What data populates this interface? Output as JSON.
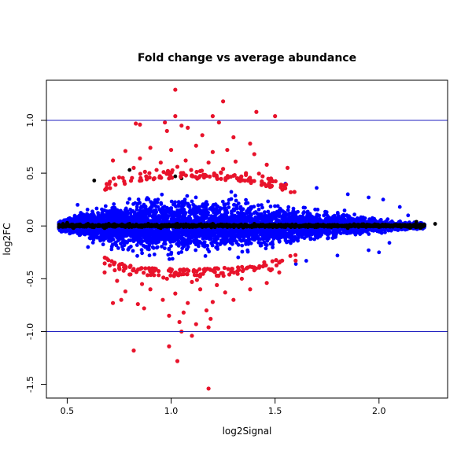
{
  "chart_data": {
    "type": "scatter",
    "title": "Fold change vs average abundance",
    "xlabel": "log2Signal",
    "ylabel": "log2FC",
    "xlim": [
      0.4,
      2.33
    ],
    "ylim": [
      -1.63,
      1.38
    ],
    "x_ticks": [
      {
        "value": 0.5,
        "label": "0.5"
      },
      {
        "value": 1.0,
        "label": "1.0"
      },
      {
        "value": 1.5,
        "label": "1.5"
      },
      {
        "value": 2.0,
        "label": "2.0"
      }
    ],
    "y_ticks": [
      {
        "value": 1.0,
        "label": "1.0"
      },
      {
        "value": 0.5,
        "label": "0.5"
      },
      {
        "value": 0.0,
        "label": "0.0"
      },
      {
        "value": -0.5,
        "label": "-0.5"
      },
      {
        "value": -1.0,
        "label": "-1.0"
      },
      {
        "value": -1.5,
        "label": "-1.5"
      }
    ],
    "reference_lines": [
      1.0,
      -1.0
    ],
    "reference_line_color": "#1f1fbf",
    "grid": false,
    "colors": {
      "black": "#000000",
      "blue": "#0000ff",
      "red": "#e8132b"
    },
    "points_black": [
      [
        0.46,
        -0.01
      ],
      [
        0.48,
        0.02
      ],
      [
        0.5,
        0.03
      ],
      [
        0.53,
        -0.02
      ],
      [
        0.55,
        0.01
      ],
      [
        0.58,
        0.0
      ],
      [
        0.6,
        0.02
      ],
      [
        0.62,
        -0.01
      ],
      [
        0.65,
        0.01
      ],
      [
        0.68,
        -0.02
      ],
      [
        0.7,
        0.02
      ],
      [
        0.73,
        0.0
      ],
      [
        0.76,
        0.01
      ],
      [
        0.78,
        -0.01
      ],
      [
        0.8,
        0.02
      ],
      [
        0.83,
        0.0
      ],
      [
        0.86,
        -0.01
      ],
      [
        0.89,
        0.02
      ],
      [
        0.92,
        0.01
      ],
      [
        0.95,
        -0.02
      ],
      [
        0.98,
        0.01
      ],
      [
        1.0,
        0.0
      ],
      [
        1.03,
        0.02
      ],
      [
        1.06,
        -0.01
      ],
      [
        1.1,
        0.01
      ],
      [
        1.15,
        -0.01
      ],
      [
        1.2,
        0.02
      ],
      [
        1.25,
        0.0
      ],
      [
        1.3,
        0.01
      ],
      [
        1.35,
        -0.01
      ],
      [
        1.4,
        0.02
      ],
      [
        1.45,
        0.0
      ],
      [
        1.5,
        0.01
      ],
      [
        1.55,
        -0.01
      ],
      [
        1.6,
        0.0
      ],
      [
        1.65,
        0.01
      ],
      [
        1.7,
        -0.01
      ],
      [
        1.75,
        0.0
      ],
      [
        1.8,
        0.01
      ],
      [
        1.85,
        -0.02
      ],
      [
        1.9,
        0.0
      ],
      [
        1.95,
        0.01
      ],
      [
        2.0,
        -0.01
      ],
      [
        2.05,
        0.0
      ],
      [
        2.1,
        0.01
      ],
      [
        2.15,
        -0.02
      ],
      [
        2.18,
        0.04
      ],
      [
        2.2,
        -0.02
      ],
      [
        2.27,
        0.02
      ],
      [
        0.63,
        0.43
      ],
      [
        0.8,
        0.53
      ],
      [
        1.02,
        0.47
      ],
      [
        1.05,
        0.45
      ]
    ],
    "points_red": [
      [
        1.02,
        1.29
      ],
      [
        1.25,
        1.18
      ],
      [
        1.41,
        1.08
      ],
      [
        1.5,
        1.04
      ],
      [
        1.2,
        1.04
      ],
      [
        1.02,
        1.04
      ],
      [
        0.83,
        0.97
      ],
      [
        0.85,
        0.96
      ],
      [
        0.97,
        0.98
      ],
      [
        1.05,
        0.95
      ],
      [
        1.08,
        0.93
      ],
      [
        1.23,
        0.98
      ],
      [
        1.15,
        0.86
      ],
      [
        0.98,
        0.9
      ],
      [
        1.3,
        0.84
      ],
      [
        1.38,
        0.78
      ],
      [
        0.78,
        0.71
      ],
      [
        0.9,
        0.74
      ],
      [
        1.0,
        0.72
      ],
      [
        1.12,
        0.76
      ],
      [
        1.2,
        0.7
      ],
      [
        1.27,
        0.72
      ],
      [
        1.4,
        0.68
      ],
      [
        0.72,
        0.62
      ],
      [
        0.85,
        0.64
      ],
      [
        0.95,
        0.6
      ],
      [
        1.07,
        0.62
      ],
      [
        1.18,
        0.6
      ],
      [
        1.31,
        0.61
      ],
      [
        1.46,
        0.58
      ],
      [
        0.82,
        0.55
      ],
      [
        0.93,
        0.53
      ],
      [
        1.03,
        0.56
      ],
      [
        1.14,
        0.52
      ],
      [
        1.25,
        0.54
      ],
      [
        1.36,
        0.5
      ],
      [
        1.56,
        0.55
      ],
      [
        0.75,
        0.46
      ],
      [
        0.88,
        0.47
      ],
      [
        0.99,
        0.45
      ],
      [
        1.1,
        0.48
      ],
      [
        1.22,
        0.46
      ],
      [
        1.33,
        0.45
      ],
      [
        1.44,
        0.47
      ],
      [
        0.68,
        -0.44
      ],
      [
        0.8,
        -0.46
      ],
      [
        0.92,
        -0.42
      ],
      [
        1.04,
        -0.45
      ],
      [
        1.16,
        -0.43
      ],
      [
        1.28,
        -0.46
      ],
      [
        1.4,
        -0.42
      ],
      [
        1.52,
        -0.44
      ],
      [
        0.74,
        -0.52
      ],
      [
        0.86,
        -0.55
      ],
      [
        0.98,
        -0.5
      ],
      [
        1.1,
        -0.53
      ],
      [
        1.22,
        -0.56
      ],
      [
        1.34,
        -0.5
      ],
      [
        1.46,
        -0.54
      ],
      [
        0.78,
        -0.62
      ],
      [
        0.9,
        -0.6
      ],
      [
        1.02,
        -0.64
      ],
      [
        1.14,
        -0.6
      ],
      [
        1.26,
        -0.63
      ],
      [
        1.38,
        -0.6
      ],
      [
        0.72,
        -0.73
      ],
      [
        0.76,
        -0.7
      ],
      [
        0.84,
        -0.74
      ],
      [
        0.96,
        -0.7
      ],
      [
        1.08,
        -0.73
      ],
      [
        1.2,
        -0.72
      ],
      [
        1.3,
        -0.7
      ],
      [
        0.87,
        -0.78
      ],
      [
        1.06,
        -0.82
      ],
      [
        1.17,
        -0.8
      ],
      [
        1.19,
        -0.88
      ],
      [
        0.99,
        -0.85
      ],
      [
        1.04,
        -0.91
      ],
      [
        1.12,
        -0.93
      ],
      [
        1.18,
        -0.96
      ],
      [
        1.05,
        -1.0
      ],
      [
        1.1,
        -1.04
      ],
      [
        0.99,
        -1.14
      ],
      [
        0.82,
        -1.18
      ],
      [
        1.03,
        -1.28
      ],
      [
        1.18,
        -1.54
      ]
    ],
    "blue_band": {
      "x_min": 0.46,
      "x_max": 2.22,
      "profile": [
        {
          "x": 0.46,
          "upper": 0.07,
          "lower": -0.07
        },
        {
          "x": 0.55,
          "upper": 0.16,
          "lower": -0.13
        },
        {
          "x": 0.65,
          "upper": 0.28,
          "lower": -0.25
        },
        {
          "x": 0.75,
          "upper": 0.37,
          "lower": -0.33
        },
        {
          "x": 0.9,
          "upper": 0.42,
          "lower": -0.38
        },
        {
          "x": 1.1,
          "upper": 0.43,
          "lower": -0.39
        },
        {
          "x": 1.3,
          "upper": 0.41,
          "lower": -0.37
        },
        {
          "x": 1.5,
          "upper": 0.34,
          "lower": -0.3
        },
        {
          "x": 1.7,
          "upper": 0.23,
          "lower": -0.2
        },
        {
          "x": 1.9,
          "upper": 0.15,
          "lower": -0.13
        },
        {
          "x": 2.1,
          "upper": 0.08,
          "lower": -0.07
        },
        {
          "x": 2.22,
          "upper": 0.04,
          "lower": -0.04
        }
      ],
      "outliers": [
        [
          1.7,
          0.36
        ],
        [
          1.85,
          0.3
        ],
        [
          1.95,
          0.27
        ],
        [
          2.02,
          0.25
        ],
        [
          2.1,
          0.18
        ],
        [
          1.65,
          -0.33
        ],
        [
          1.8,
          -0.28
        ],
        [
          1.95,
          -0.23
        ],
        [
          2.05,
          -0.16
        ],
        [
          0.55,
          0.2
        ],
        [
          0.6,
          -0.2
        ],
        [
          1.55,
          0.4
        ],
        [
          1.6,
          -0.36
        ],
        [
          2.0,
          -0.25
        ],
        [
          2.14,
          0.1
        ]
      ]
    }
  }
}
